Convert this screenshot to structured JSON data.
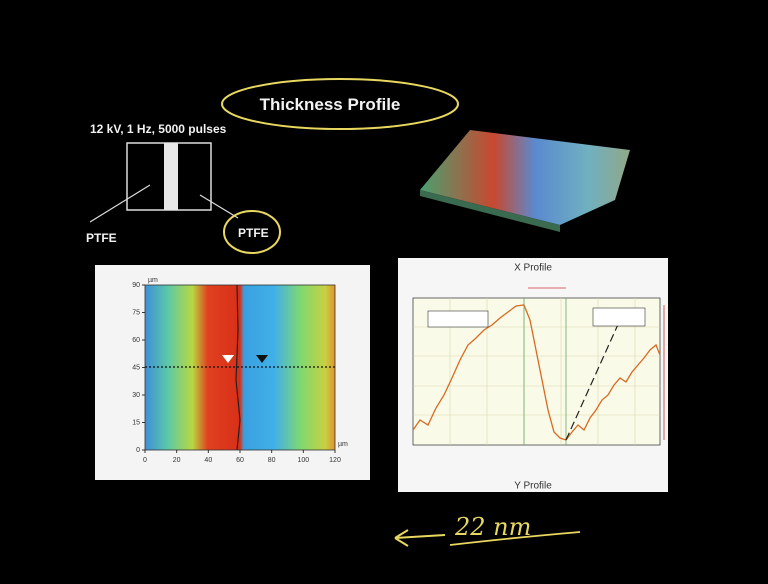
{
  "slide": {
    "title": "Thickness Profile",
    "conditions": "12 kV, 1 Hz, 5000 pulses",
    "labels": [
      "PTFE",
      "PTFE"
    ],
    "heatmap": {
      "unit_y": "µm",
      "unit_x": "µm",
      "yticks": [
        0,
        15,
        30,
        45,
        60,
        75,
        90
      ],
      "xticks": [
        0,
        20,
        40,
        60,
        80,
        100,
        120
      ]
    },
    "profile": {
      "title": "X Profile",
      "footer": "Y Profile"
    },
    "annotation": "22 nm"
  }
}
